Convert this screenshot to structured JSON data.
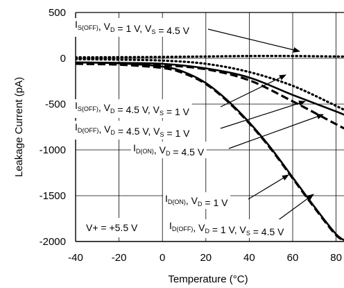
{
  "chart_data": {
    "type": "line",
    "title": "",
    "xlabel": "Temperature (°C)",
    "ylabel": "Leakage Current (pA)",
    "xlim": [
      -40,
      85
    ],
    "ylim": [
      -2000,
      500
    ],
    "xticks": [
      -40,
      -20,
      0,
      20,
      40,
      60,
      80
    ],
    "yticks": [
      500,
      0,
      -500,
      -1000,
      -1500,
      -2000
    ],
    "grid": true,
    "condition_label": "V+ = +5.5 V",
    "series": [
      {
        "name": "I_S(OFF), V_D = 1 V, V_S = 4.5 V",
        "style": "dotted",
        "x": [
          -40,
          -20,
          0,
          20,
          40,
          60,
          80,
          85
        ],
        "y": [
          10,
          12,
          15,
          20,
          25,
          25,
          20,
          20
        ]
      },
      {
        "name": "I_S(OFF), V_D = 4.5 V, V_S = 1 V",
        "style": "dotted",
        "x": [
          -40,
          -20,
          0,
          20,
          40,
          60,
          80,
          85
        ],
        "y": [
          -10,
          -15,
          -25,
          -60,
          -150,
          -300,
          -520,
          -580
        ]
      },
      {
        "name": "I_D(OFF), V_D = 4.5 V, V_S = 1 V",
        "style": "dashed",
        "x": [
          -40,
          -20,
          0,
          20,
          40,
          60,
          80,
          85
        ],
        "y": [
          -60,
          -65,
          -75,
          -120,
          -240,
          -470,
          -720,
          -780
        ]
      },
      {
        "name": "I_D(ON), V_D = 4.5 V",
        "style": "solid",
        "x": [
          -40,
          -20,
          0,
          20,
          40,
          60,
          80,
          85
        ],
        "y": [
          -45,
          -50,
          -60,
          -110,
          -210,
          -400,
          -580,
          -630
        ]
      },
      {
        "name": "I_D(ON), V_D = 1 V",
        "style": "solid",
        "x": [
          -40,
          -20,
          0,
          10,
          20,
          30,
          40,
          50,
          60,
          70,
          80,
          85
        ],
        "y": [
          -45,
          -55,
          -90,
          -150,
          -270,
          -460,
          -700,
          -980,
          -1300,
          -1620,
          -1920,
          -2000
        ]
      },
      {
        "name": "I_D(OFF), V_D = 1 V, V_S = 4.5 V",
        "style": "dashed",
        "x": [
          -40,
          -20,
          0,
          10,
          20,
          30,
          40,
          50,
          60,
          70,
          80,
          85
        ],
        "y": [
          -60,
          -70,
          -105,
          -165,
          -280,
          -470,
          -710,
          -990,
          -1310,
          -1630,
          -1930,
          -2000
        ]
      }
    ],
    "annotations": [
      {
        "main": "I",
        "sub": "S(OFF)",
        "rest": ", V",
        "sub2": "D",
        "rest2": " = 1 V, V",
        "sub3": "S",
        "rest3": " = 4.5 V"
      },
      {
        "main": "I",
        "sub": "S(OFF)",
        "rest": ", V",
        "sub2": "D",
        "rest2": " = 4.5 V, V",
        "sub3": "S",
        "rest3": " = 1 V"
      },
      {
        "main": "I",
        "sub": "D(OFF)",
        "rest": ", V",
        "sub2": "D",
        "rest2": " = 4.5 V, V",
        "sub3": "S",
        "rest3": " = 1 V"
      },
      {
        "main": "I",
        "sub": "D(ON)",
        "rest": ", V",
        "sub2": "D",
        "rest2": " = 4.5 V",
        "sub3": "",
        "rest3": ""
      },
      {
        "main": "I",
        "sub": "D(ON)",
        "rest": ", V",
        "sub2": "D",
        "rest2": " = 1 V",
        "sub3": "",
        "rest3": ""
      },
      {
        "main": "I",
        "sub": "D(OFF)",
        "rest": ", V",
        "sub2": "D",
        "rest2": " = 1 V, V",
        "sub3": "S",
        "rest3": " = 4.5 V"
      }
    ]
  }
}
